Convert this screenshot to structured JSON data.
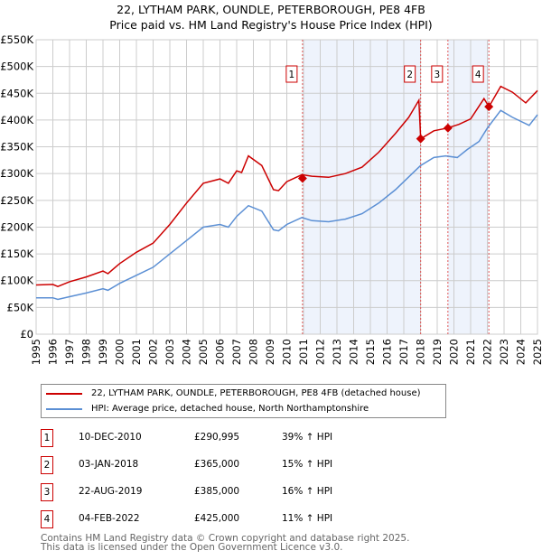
{
  "title": "22, LYTHAM PARK, OUNDLE, PETERBOROUGH, PE8 4FB",
  "subtitle": "Price paid vs. HM Land Registry's House Price Index (HPI)",
  "colors": {
    "property": "#cc0000",
    "hpi": "#5b8fd4",
    "shade": "#eef3fc",
    "marker": "#cc0000"
  },
  "chart_data": {
    "type": "line",
    "title": "22, LYTHAM PARK, OUNDLE, PETERBOROUGH, PE8 4FB — Price paid vs. HM Land Registry's House Price Index (HPI)",
    "xlim": [
      1995,
      2025
    ],
    "ylim": [
      0,
      550000
    ],
    "yticks": [
      0,
      50000,
      100000,
      150000,
      200000,
      250000,
      300000,
      350000,
      400000,
      450000,
      500000,
      550000
    ],
    "ytick_labels": [
      "£0",
      "£50K",
      "£100K",
      "£150K",
      "£200K",
      "£250K",
      "£300K",
      "£350K",
      "£400K",
      "£450K",
      "£500K",
      "£550K"
    ],
    "xticks": [
      1995,
      1996,
      1997,
      1998,
      1999,
      2000,
      2001,
      2002,
      2003,
      2004,
      2005,
      2006,
      2007,
      2008,
      2009,
      2010,
      2011,
      2012,
      2013,
      2014,
      2015,
      2016,
      2017,
      2018,
      2019,
      2020,
      2021,
      2022,
      2023,
      2024,
      2025
    ],
    "grid": true,
    "shaded_ranges": [
      [
        2010.94,
        2018.01
      ],
      [
        2019.64,
        2022.09
      ]
    ],
    "series": [
      {
        "name": "22, LYTHAM PARK, OUNDLE, PETERBOROUGH, PE8 4FB (detached house)",
        "x": [
          1995,
          1996,
          1996.3,
          1997,
          1998,
          1999,
          1999.3,
          2000,
          2001,
          2002,
          2003,
          2004,
          2005,
          2006,
          2006.5,
          2007,
          2007.3,
          2007.7,
          2008.5,
          2009.2,
          2009.5,
          2010,
          2010.9,
          2011.5,
          2012.5,
          2013.5,
          2014.5,
          2015.5,
          2016.5,
          2017.3,
          2017.9,
          2018.01,
          2018.8,
          2019.6,
          2020.3,
          2021,
          2021.8,
          2022.1,
          2022.8,
          2023.5,
          2024.3,
          2025
        ],
        "y": [
          92000,
          93000,
          89000,
          98000,
          107000,
          118000,
          113000,
          132000,
          153000,
          170000,
          205000,
          245000,
          282000,
          290000,
          282000,
          305000,
          302000,
          333000,
          315000,
          270000,
          268000,
          285000,
          298000,
          295000,
          293000,
          300000,
          312000,
          340000,
          375000,
          405000,
          437000,
          365000,
          380000,
          385000,
          392000,
          402000,
          440000,
          425000,
          463000,
          452000,
          432000,
          455000
        ]
      },
      {
        "name": "HPI: Average price, detached house, North Northamptonshire",
        "x": [
          1995,
          1996,
          1996.3,
          1997,
          1998,
          1999,
          1999.3,
          2000,
          2001,
          2002,
          2003,
          2004,
          2005,
          2006,
          2006.5,
          2007,
          2007.7,
          2008.5,
          2009.2,
          2009.5,
          2010,
          2010.9,
          2011.5,
          2012.5,
          2013.5,
          2014.5,
          2015.5,
          2016.5,
          2017.5,
          2018,
          2018.8,
          2019.5,
          2020.2,
          2020.8,
          2021.5,
          2022,
          2022.8,
          2023.5,
          2024.5,
          2025
        ],
        "y": [
          68000,
          68000,
          65000,
          70000,
          77000,
          85000,
          82000,
          95000,
          110000,
          125000,
          150000,
          175000,
          200000,
          205000,
          200000,
          220000,
          240000,
          230000,
          195000,
          193000,
          205000,
          218000,
          212000,
          210000,
          215000,
          225000,
          245000,
          270000,
          300000,
          315000,
          330000,
          333000,
          330000,
          345000,
          360000,
          385000,
          418000,
          405000,
          390000,
          410000
        ]
      }
    ],
    "sales": [
      {
        "label": "1",
        "x": 2010.94,
        "y": 290995
      },
      {
        "label": "2",
        "x": 2018.01,
        "y": 365000
      },
      {
        "label": "3",
        "x": 2019.64,
        "y": 385000
      },
      {
        "label": "4",
        "x": 2022.09,
        "y": 425000
      }
    ]
  },
  "legend": {
    "property": "22, LYTHAM PARK, OUNDLE, PETERBOROUGH, PE8 4FB (detached house)",
    "hpi": "HPI: Average price, detached house, North Northamptonshire"
  },
  "transactions": [
    {
      "num": "1",
      "date": "10-DEC-2010",
      "price": "£290,995",
      "hpi": "39% ↑ HPI"
    },
    {
      "num": "2",
      "date": "03-JAN-2018",
      "price": "£365,000",
      "hpi": "15% ↑ HPI"
    },
    {
      "num": "3",
      "date": "22-AUG-2019",
      "price": "£385,000",
      "hpi": "16% ↑ HPI"
    },
    {
      "num": "4",
      "date": "04-FEB-2022",
      "price": "£425,000",
      "hpi": "11% ↑ HPI"
    }
  ],
  "footer": {
    "line1": "Contains HM Land Registry data © Crown copyright and database right 2025.",
    "line2": "This data is licensed under the Open Government Licence v3.0."
  }
}
